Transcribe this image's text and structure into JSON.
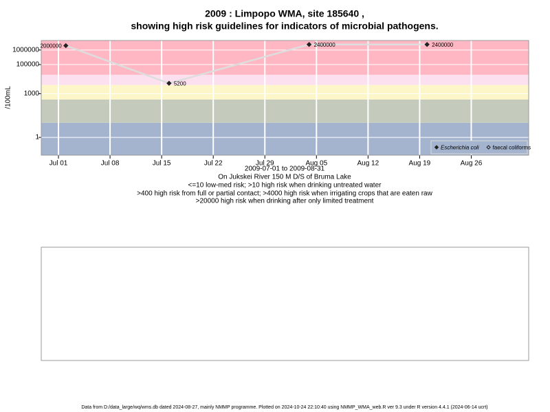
{
  "chart_data": {
    "type": "line",
    "title": [
      "2009 : Limpopo WMA, site 185640 ,",
      "showing high risk guidelines for indicators of microbial pathogens."
    ],
    "y_label": "/100mL",
    "notes": [
      "2009-07-01 to 2009-08-31",
      "On Jukskei River 150 M D/S of Bruma Lake",
      "<=10 low-med risk; >10 high risk when drinking untreated water",
      ">400 high risk from full or partial contact; >4000 high risk when irrigating crops that are eaten raw",
      ">20000 high risk when drinking after only limited treatment"
    ],
    "footer": "Data from D:/data_large/wq/wms.db dated 2024-08-27, mainly NMMP programme. Plotted on 2024-10-24 22:10:40 using NMMP_WMA_web.R ver 9.3 under R version 4.4.1 (2024-06-14 ucrt)",
    "x": [
      "2009-07-02",
      "2009-07-16",
      "2009-08-04",
      "2009-08-20"
    ],
    "series": [
      {
        "name": "Escherichia coli",
        "color": "#222222",
        "line_color": "#dddddd",
        "marker": "filled-diamond",
        "values": [
          2000000,
          5200,
          2400000,
          2400000
        ]
      },
      {
        "name": "faecal coliforms",
        "color": "#222222",
        "marker": "open-diamond",
        "values": [
          null,
          null,
          null,
          null
        ]
      }
    ],
    "xlim": [
      "2009-06-28T16:00",
      "2009-09-02T19:00"
    ],
    "xticks": [
      {
        "value": "2009-07-01",
        "label": "Jul 01"
      },
      {
        "value": "2009-07-08",
        "label": "Jul 08"
      },
      {
        "value": "2009-07-15",
        "label": "Jul 15"
      },
      {
        "value": "2009-07-22",
        "label": "Jul 22"
      },
      {
        "value": "2009-07-29",
        "label": "Jul 29"
      },
      {
        "value": "2009-08-05",
        "label": "Aug 05"
      },
      {
        "value": "2009-08-12",
        "label": "Aug 12"
      },
      {
        "value": "2009-08-19",
        "label": "Aug 19"
      },
      {
        "value": "2009-08-26",
        "label": "Aug 26"
      }
    ],
    "ylim": [
      0.06,
      4500000
    ],
    "yticks": [
      1,
      1000,
      100000,
      1000000
    ],
    "log_y": true,
    "grid": true,
    "bands": {
      "edges": [
        10,
        400,
        4000,
        20000
      ],
      "colors": [
        "#a4b4cf",
        "#c4cbbd",
        "#fdf6c8",
        "#fde0f0",
        "#ffb7c3"
      ]
    },
    "legend": "bottom-right"
  }
}
